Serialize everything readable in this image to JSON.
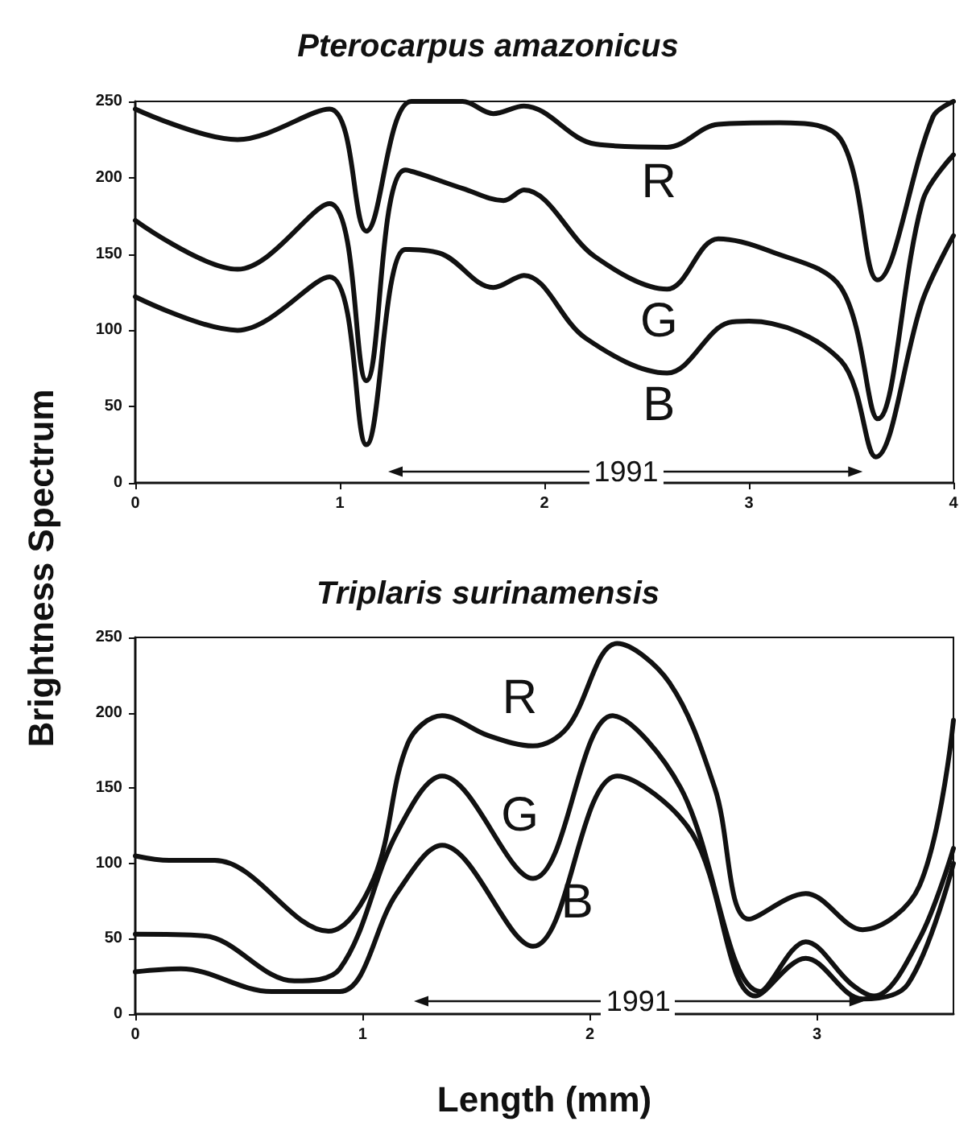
{
  "chart_data": [
    {
      "type": "line",
      "title": "Pterocarpus amazonicus",
      "ylabel": "Brightness Spectrum",
      "xlim": [
        0,
        4
      ],
      "xticks": [
        0,
        1,
        2,
        3,
        4
      ],
      "ylim": [
        0,
        250
      ],
      "yticks": [
        0,
        50,
        100,
        150,
        200,
        250
      ],
      "grid": false,
      "legend": false,
      "marker": "none",
      "line_style": "solid",
      "series": [
        {
          "name": "R",
          "color": "#111111",
          "x": [
            0,
            0.5,
            0.95,
            1.13,
            1.35,
            1.6,
            1.75,
            1.9,
            2.25,
            2.6,
            2.85,
            3.15,
            3.45,
            3.63,
            3.9,
            4
          ],
          "values": [
            245,
            225,
            245,
            165,
            250,
            250,
            242,
            247,
            222,
            220,
            235,
            236,
            225,
            133,
            240,
            250
          ]
        },
        {
          "name": "G",
          "color": "#111111",
          "x": [
            0,
            0.5,
            0.95,
            1.13,
            1.32,
            1.6,
            1.8,
            1.9,
            2.25,
            2.6,
            2.85,
            3.1,
            3.45,
            3.63,
            3.85,
            4
          ],
          "values": [
            172,
            140,
            183,
            67,
            205,
            193,
            185,
            192,
            148,
            127,
            160,
            152,
            128,
            42,
            185,
            215
          ]
        },
        {
          "name": "B",
          "color": "#111111",
          "x": [
            0,
            0.5,
            0.95,
            1.13,
            1.32,
            1.5,
            1.75,
            1.9,
            2.2,
            2.6,
            2.9,
            3.0,
            3.45,
            3.62,
            3.85,
            4
          ],
          "values": [
            122,
            100,
            135,
            25,
            153,
            150,
            128,
            136,
            95,
            72,
            105,
            106,
            80,
            17,
            120,
            162
          ]
        }
      ],
      "annotations": [
        "1991"
      ]
    },
    {
      "type": "line",
      "title": "Triplaris surinamensis",
      "xlabel": "Length (mm)",
      "xlim": [
        0,
        3.6
      ],
      "xticks": [
        0,
        1,
        2,
        3
      ],
      "ylim": [
        0,
        250
      ],
      "yticks": [
        0,
        50,
        100,
        150,
        200,
        250
      ],
      "grid": false,
      "legend": false,
      "marker": "none",
      "line_style": "solid",
      "series": [
        {
          "name": "R",
          "color": "#111111",
          "x": [
            0,
            0.15,
            0.35,
            0.85,
            1.05,
            1.2,
            1.35,
            1.55,
            1.75,
            1.9,
            2.12,
            2.35,
            2.55,
            2.7,
            2.95,
            3.2,
            3.45,
            3.6
          ],
          "values": [
            105,
            102,
            102,
            55,
            90,
            180,
            198,
            185,
            178,
            190,
            246,
            220,
            150,
            63,
            80,
            56,
            85,
            195
          ]
        },
        {
          "name": "G",
          "color": "#111111",
          "x": [
            0,
            0.3,
            0.7,
            0.9,
            1.15,
            1.35,
            1.75,
            2.1,
            2.4,
            2.75,
            2.95,
            3.15,
            3.25,
            3.45,
            3.6
          ],
          "values": [
            53,
            52,
            22,
            30,
            120,
            158,
            90,
            198,
            150,
            15,
            48,
            20,
            12,
            50,
            110
          ]
        },
        {
          "name": "B",
          "color": "#111111",
          "x": [
            0,
            0.2,
            0.6,
            0.9,
            1.15,
            1.35,
            1.75,
            2.12,
            2.45,
            2.73,
            2.95,
            3.2,
            3.4,
            3.6
          ],
          "values": [
            28,
            30,
            15,
            15,
            80,
            112,
            45,
            158,
            120,
            12,
            37,
            10,
            20,
            100
          ]
        }
      ],
      "annotations": [
        "1991"
      ]
    }
  ]
}
